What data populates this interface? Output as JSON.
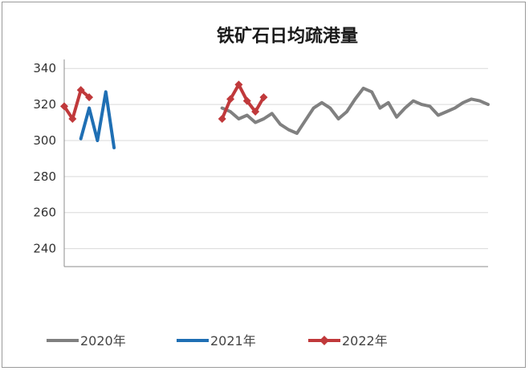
{
  "chart_data": {
    "type": "line",
    "title": "铁矿石日均疏港量",
    "xlabel": "",
    "ylabel": "",
    "ylim": [
      230,
      345
    ],
    "yticks": [
      "340",
      "320",
      "300",
      "280",
      "260",
      "240"
    ],
    "grid": true,
    "legend_position": "bottom",
    "x": [
      1,
      2,
      3,
      4,
      5,
      6,
      7,
      8,
      9,
      10,
      11,
      12,
      13,
      14,
      15,
      16,
      17,
      18,
      19,
      20,
      21,
      22,
      23,
      24,
      25,
      26,
      27,
      28,
      29,
      30,
      31,
      32,
      33,
      34,
      35,
      36,
      37,
      38,
      39,
      40,
      41,
      42,
      43,
      44,
      45,
      46,
      47,
      48,
      49,
      50,
      51,
      52
    ],
    "series": [
      {
        "name": "2020年",
        "color": "#808080",
        "marker": "none",
        "values": [
          null,
          null,
          null,
          null,
          null,
          null,
          null,
          null,
          null,
          null,
          null,
          null,
          null,
          null,
          null,
          null,
          null,
          null,
          null,
          318,
          316,
          312,
          314,
          310,
          312,
          315,
          309,
          306,
          304,
          311,
          318,
          321,
          318,
          312,
          316,
          323,
          329,
          327,
          318,
          321,
          313,
          318,
          322,
          320,
          319,
          314,
          316,
          318,
          321,
          323,
          322,
          320
        ]
      },
      {
        "name": "2021年",
        "color": "#1f6fb4",
        "marker": "none",
        "values": [
          null,
          null,
          301,
          318,
          300,
          327,
          296,
          null,
          null,
          null,
          null,
          null,
          null,
          null,
          null,
          null,
          null,
          null,
          null,
          null,
          null,
          null,
          null,
          null,
          null,
          null,
          null,
          null,
          null,
          null,
          null,
          null,
          null,
          null,
          null,
          null,
          null,
          null,
          null,
          null,
          null,
          null,
          null,
          null,
          null,
          null,
          null,
          null,
          null,
          null,
          null,
          null
        ]
      },
      {
        "name": "2022年",
        "color": "#c0393b",
        "marker": "diamond",
        "values": [
          319,
          312,
          328,
          324,
          null,
          null,
          null,
          null,
          null,
          null,
          null,
          null,
          null,
          null,
          null,
          null,
          null,
          null,
          null,
          312,
          323,
          331,
          322,
          316,
          324,
          null,
          null,
          null,
          null,
          null,
          null,
          null,
          null,
          null,
          null,
          null,
          null,
          null,
          null,
          null,
          null,
          null,
          null,
          null,
          null,
          null,
          null,
          null,
          null,
          null,
          null,
          null
        ]
      }
    ]
  }
}
